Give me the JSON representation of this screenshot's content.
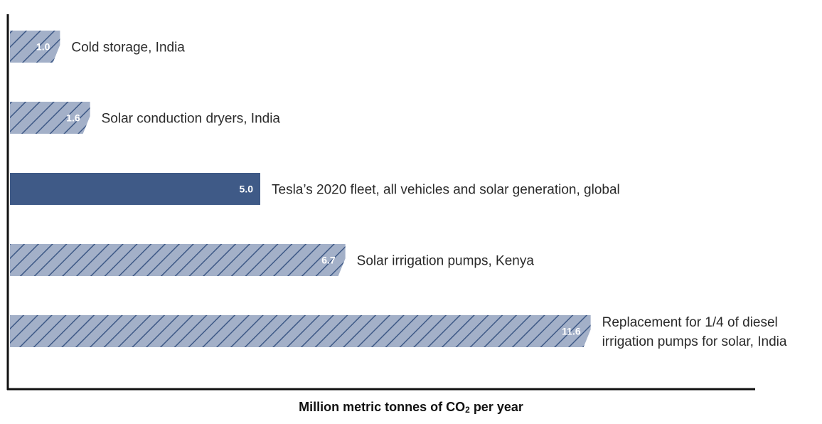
{
  "chart_data": {
    "type": "bar",
    "orientation": "horizontal",
    "categories": [
      "Cold storage, India",
      "Solar conduction dryers, India",
      "Tesla’s 2020 fleet, all vehicles and solar generation, global",
      "Solar irrigation pumps, Kenya",
      "Replacement for 1/4 of diesel irrigation pumps for solar, India"
    ],
    "category_lines": [
      [
        "Cold storage, India"
      ],
      [
        "Solar conduction dryers, India"
      ],
      [
        "Tesla’s 2020 fleet, all vehicles and solar generation, global"
      ],
      [
        "Solar irrigation pumps, Kenya"
      ],
      [
        "Replacement for 1/4 of diesel",
        "irrigation pumps for solar, India"
      ]
    ],
    "values": [
      1.0,
      1.6,
      5.0,
      6.7,
      11.6
    ],
    "value_labels": [
      "1.0",
      "1.6",
      "5.0",
      "6.7",
      "11.6"
    ],
    "styles": [
      "hatched",
      "hatched",
      "solid",
      "hatched",
      "hatched"
    ],
    "xlabel_main": "Million metric tonnes of CO",
    "xlabel_sub": "2",
    "xlabel_tail": " per year",
    "xlim": [
      0,
      14.5
    ],
    "grid": false,
    "colors": {
      "solid": "#3f5a87",
      "hatch_bg": "#a3b0c8",
      "hatch_line": "#3f5a87",
      "axis": "#111111"
    }
  }
}
